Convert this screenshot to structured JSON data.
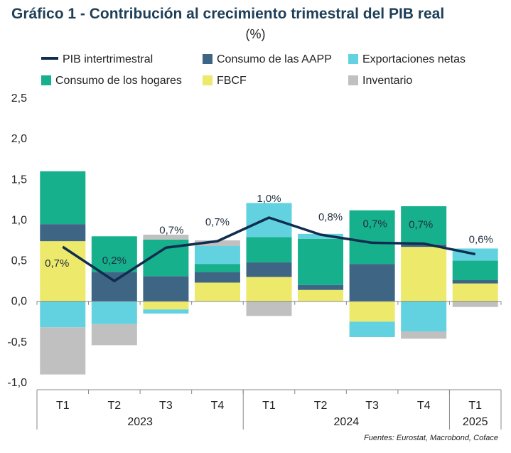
{
  "chart_data": {
    "type": "bar",
    "title": "Gráfico 1  - Contribución al crecimiento trimestral del PIB real",
    "subtitle": "(%)",
    "categories": [
      "T1",
      "T2",
      "T3",
      "T4",
      "T1",
      "T2",
      "T3",
      "T4",
      "T1"
    ],
    "years": [
      {
        "label": "2023",
        "from": 0,
        "to": 3
      },
      {
        "label": "2024",
        "from": 4,
        "to": 7
      },
      {
        "label": "2025",
        "from": 8,
        "to": 8
      }
    ],
    "ylim": [
      -1.0,
      2.5
    ],
    "yticks": [
      "2,5",
      "2,0",
      "1,5",
      "1,0",
      "0,5",
      "0,0",
      "-0,5",
      "-1,0"
    ],
    "ytick_values": [
      2.5,
      2.0,
      1.5,
      1.0,
      0.5,
      0.0,
      -0.5,
      -1.0
    ],
    "legend_position": "top",
    "series": [
      {
        "name": "FBCF",
        "color": "#ede96a",
        "values": [
          0.74,
          0.0,
          -0.1,
          0.23,
          0.3,
          0.14,
          -0.25,
          0.67,
          0.22
        ]
      },
      {
        "name": "Consumo de las AAPP",
        "color": "#3f6585",
        "values": [
          0.21,
          0.36,
          0.31,
          0.13,
          0.18,
          0.06,
          0.46,
          0.03,
          0.04
        ]
      },
      {
        "name": "Consumo de los hogares",
        "color": "#16b08c",
        "values": [
          0.65,
          0.44,
          0.45,
          0.1,
          0.31,
          0.57,
          0.66,
          0.47,
          0.24
        ]
      },
      {
        "name": "Exportaciones netas",
        "color": "#62d2e0",
        "values": [
          -0.32,
          -0.28,
          -0.05,
          0.22,
          0.42,
          0.06,
          -0.19,
          -0.37,
          0.15
        ]
      },
      {
        "name": "Inventario",
        "color": "#c0c0c0",
        "values": [
          -0.58,
          -0.26,
          0.06,
          0.07,
          -0.18,
          0.0,
          0.0,
          -0.09,
          -0.07
        ]
      }
    ],
    "line": {
      "name": "PIB intertrimestral",
      "color": "#0f2d4e",
      "values": [
        0.67,
        0.25,
        0.66,
        0.74,
        1.03,
        0.82,
        0.72,
        0.71,
        0.58
      ],
      "labels": [
        "0,7%",
        "0,2%",
        "0,7%",
        "0,7%",
        "1,0%",
        "0,8%",
        "0,7%",
        "0,7%",
        "0,6%"
      ]
    },
    "grid": false
  },
  "legend": [
    {
      "label": "PIB intertrimestral",
      "kind": "line",
      "color": "#0f2d4e"
    },
    {
      "label": "Consumo de las AAPP",
      "kind": "box",
      "color": "#3f6585"
    },
    {
      "label": "Exportaciones netas",
      "kind": "box",
      "color": "#62d2e0"
    },
    {
      "label": "Consumo de los hogares",
      "kind": "box",
      "color": "#16b08c"
    },
    {
      "label": "FBCF",
      "kind": "box",
      "color": "#ede96a"
    },
    {
      "label": "Inventario",
      "kind": "box",
      "color": "#c0c0c0"
    }
  ],
  "source": "Fuentes: Eurostat, Macrobond, Coface"
}
